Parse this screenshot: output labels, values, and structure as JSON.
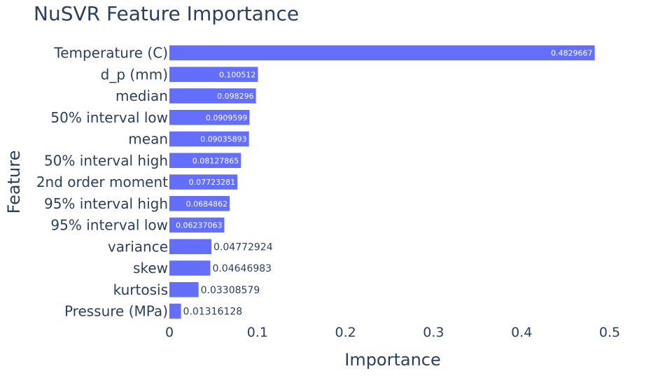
{
  "chart_data": {
    "type": "bar",
    "orientation": "horizontal",
    "title": "NuSVR Feature Importance",
    "xlabel": "Importance",
    "ylabel": "Feature",
    "xlim": [
      0,
      0.5
    ],
    "x_ticks": [
      0,
      0.1,
      0.2,
      0.3,
      0.4,
      0.5
    ],
    "x_tick_labels": [
      "0",
      "0.1",
      "0.2",
      "0.3",
      "0.4",
      "0.5"
    ],
    "grid": false,
    "bar_color": "#636efa",
    "categories": [
      "Temperature (C)",
      "d_p (mm)",
      "median",
      "50% interval low",
      "mean",
      "50% interval high",
      "2nd order moment",
      "95% interval high",
      "95% interval low",
      "variance",
      "skew",
      "kurtosis",
      "Pressure (MPa)"
    ],
    "values": [
      0.4829667,
      0.100512,
      0.098296,
      0.0909599,
      0.09035893,
      0.08127865,
      0.07723281,
      0.0684862,
      0.06237063,
      0.04772924,
      0.04646983,
      0.03308579,
      0.01316128
    ],
    "value_labels": [
      "0.4829667",
      "0.100512",
      "0.098296",
      "0.0909599",
      "0.09035893",
      "0.08127865",
      "0.07723281",
      "0.0684862",
      "0.06237063",
      "0.04772924",
      "0.04646983",
      "0.03308579",
      "0.01316128"
    ]
  }
}
